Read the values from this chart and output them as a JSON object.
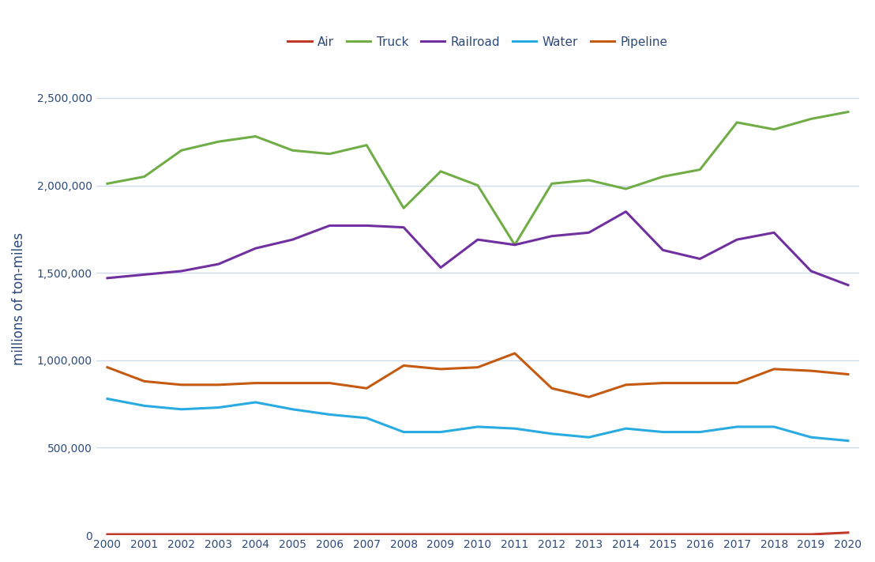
{
  "years": [
    2000,
    2001,
    2002,
    2003,
    2004,
    2005,
    2006,
    2007,
    2008,
    2009,
    2010,
    2011,
    2012,
    2013,
    2014,
    2015,
    2016,
    2017,
    2018,
    2019,
    2020
  ],
  "air": [
    5000,
    5000,
    5000,
    5000,
    5000,
    5000,
    5000,
    5000,
    5000,
    5000,
    5000,
    5000,
    5000,
    5000,
    5000,
    5000,
    5000,
    5000,
    5000,
    5000,
    15000
  ],
  "truck": [
    2010000,
    2050000,
    2200000,
    2250000,
    2280000,
    2200000,
    2180000,
    2230000,
    1870000,
    2080000,
    2000000,
    1660000,
    2010000,
    2030000,
    1980000,
    2050000,
    2090000,
    2360000,
    2320000,
    2380000,
    2420000
  ],
  "railroad": [
    1470000,
    1490000,
    1510000,
    1550000,
    1640000,
    1690000,
    1770000,
    1770000,
    1760000,
    1530000,
    1690000,
    1660000,
    1710000,
    1730000,
    1850000,
    1630000,
    1580000,
    1690000,
    1730000,
    1510000,
    1430000
  ],
  "water": [
    780000,
    740000,
    720000,
    730000,
    760000,
    720000,
    690000,
    670000,
    590000,
    590000,
    620000,
    610000,
    580000,
    560000,
    610000,
    590000,
    590000,
    620000,
    620000,
    560000,
    540000
  ],
  "pipeline": [
    960000,
    880000,
    860000,
    860000,
    870000,
    870000,
    870000,
    840000,
    970000,
    950000,
    960000,
    1040000,
    840000,
    790000,
    860000,
    870000,
    870000,
    870000,
    950000,
    940000,
    920000
  ],
  "air_color": "#c0392b",
  "truck_color": "#70ad47",
  "railroad_color": "#7030a0",
  "water_color": "#29abe2",
  "pipeline_color": "#c55a11",
  "ylabel": "millions of ton-miles",
  "fig_background": "#ffffff",
  "plot_background": "#ffffff",
  "gridline_color": "#c8d8f0",
  "ylim": [
    0,
    2700000
  ],
  "yticks": [
    0,
    500000,
    1000000,
    1500000,
    2000000,
    2500000
  ],
  "tick_label_color": "#2e4a7a",
  "ylabel_color": "#2e4a7a",
  "legend_labels": [
    "Air",
    "Truck",
    "Railroad",
    "Water",
    "Pipeline"
  ],
  "legend_text_color": "#2e4a7a",
  "line_width": 2.2
}
